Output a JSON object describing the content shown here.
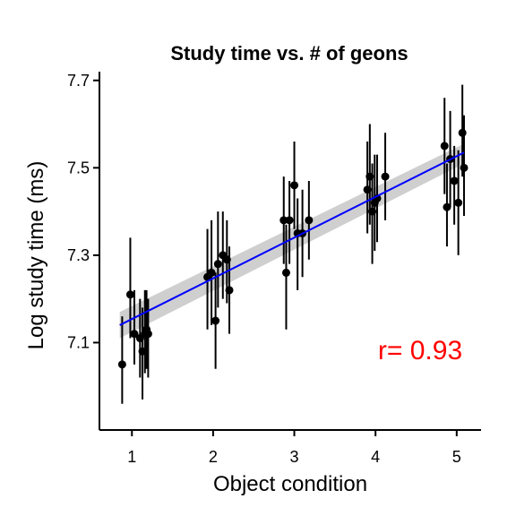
{
  "chart_data": {
    "type": "scatter",
    "title": "Study time vs. # of geons",
    "xlabel": "Object condition",
    "ylabel": "Log study time (ms)",
    "xlim": [
      0.6,
      5.3
    ],
    "ylim": [
      6.9,
      7.72
    ],
    "x_ticks": [
      1,
      2,
      3,
      4,
      5
    ],
    "y_ticks": [
      7.1,
      7.3,
      7.5,
      7.7
    ],
    "y_tick_labels": [
      "7.1",
      "7.3",
      "7.5",
      "7.7"
    ],
    "grid": false,
    "legend": "none",
    "colors": {
      "points": "#000000",
      "fit_line": "#0000ff",
      "ribbon": "#bfbfbf",
      "annotation": "#ff0000"
    },
    "points": [
      {
        "x": 0.88,
        "y": 7.05,
        "ylow": 6.96,
        "yhigh": 7.16
      },
      {
        "x": 0.98,
        "y": 7.21,
        "ylow": 7.11,
        "yhigh": 7.34
      },
      {
        "x": 1.03,
        "y": 7.12,
        "ylow": 7.05,
        "yhigh": 7.22
      },
      {
        "x": 1.1,
        "y": 7.11,
        "ylow": 7.02,
        "yhigh": 7.2
      },
      {
        "x": 1.13,
        "y": 7.08,
        "ylow": 6.97,
        "yhigh": 7.18
      },
      {
        "x": 1.16,
        "y": 7.12,
        "ylow": 7.03,
        "yhigh": 7.22
      },
      {
        "x": 1.18,
        "y": 7.13,
        "ylow": 7.04,
        "yhigh": 7.22
      },
      {
        "x": 1.2,
        "y": 7.12,
        "ylow": 7.02,
        "yhigh": 7.2
      },
      {
        "x": 1.93,
        "y": 7.25,
        "ylow": 7.13,
        "yhigh": 7.36
      },
      {
        "x": 1.98,
        "y": 7.26,
        "ylow": 7.14,
        "yhigh": 7.38
      },
      {
        "x": 2.03,
        "y": 7.15,
        "ylow": 7.04,
        "yhigh": 7.26
      },
      {
        "x": 2.06,
        "y": 7.28,
        "ylow": 7.18,
        "yhigh": 7.4
      },
      {
        "x": 2.12,
        "y": 7.3,
        "ylow": 7.2,
        "yhigh": 7.4
      },
      {
        "x": 2.17,
        "y": 7.29,
        "ylow": 7.19,
        "yhigh": 7.38
      },
      {
        "x": 2.2,
        "y": 7.22,
        "ylow": 7.12,
        "yhigh": 7.32
      },
      {
        "x": 2.87,
        "y": 7.38,
        "ylow": 7.28,
        "yhigh": 7.48
      },
      {
        "x": 2.9,
        "y": 7.26,
        "ylow": 7.13,
        "yhigh": 7.37
      },
      {
        "x": 2.94,
        "y": 7.38,
        "ylow": 7.28,
        "yhigh": 7.47
      },
      {
        "x": 3.0,
        "y": 7.46,
        "ylow": 7.36,
        "yhigh": 7.56
      },
      {
        "x": 3.04,
        "y": 7.35,
        "ylow": 7.22,
        "yhigh": 7.43
      },
      {
        "x": 3.1,
        "y": 7.35,
        "ylow": 7.25,
        "yhigh": 7.45
      },
      {
        "x": 3.18,
        "y": 7.38,
        "ylow": 7.29,
        "yhigh": 7.47
      },
      {
        "x": 3.9,
        "y": 7.45,
        "ylow": 7.35,
        "yhigh": 7.56
      },
      {
        "x": 3.93,
        "y": 7.48,
        "ylow": 7.37,
        "yhigh": 7.6
      },
      {
        "x": 3.96,
        "y": 7.4,
        "ylow": 7.28,
        "yhigh": 7.51
      },
      {
        "x": 3.99,
        "y": 7.42,
        "ylow": 7.31,
        "yhigh": 7.53
      },
      {
        "x": 4.02,
        "y": 7.43,
        "ylow": 7.33,
        "yhigh": 7.53
      },
      {
        "x": 4.12,
        "y": 7.48,
        "ylow": 7.38,
        "yhigh": 7.58
      },
      {
        "x": 4.85,
        "y": 7.55,
        "ylow": 7.44,
        "yhigh": 7.66
      },
      {
        "x": 4.88,
        "y": 7.41,
        "ylow": 7.32,
        "yhigh": 7.51
      },
      {
        "x": 4.92,
        "y": 7.52,
        "ylow": 7.41,
        "yhigh": 7.63
      },
      {
        "x": 4.97,
        "y": 7.47,
        "ylow": 7.37,
        "yhigh": 7.55
      },
      {
        "x": 5.02,
        "y": 7.42,
        "ylow": 7.3,
        "yhigh": 7.54
      },
      {
        "x": 5.07,
        "y": 7.58,
        "ylow": 7.48,
        "yhigh": 7.69
      },
      {
        "x": 5.09,
        "y": 7.5,
        "ylow": 7.39,
        "yhigh": 7.62
      }
    ],
    "fit": {
      "x0": 0.85,
      "y0": 7.14,
      "x1": 5.09,
      "y1": 7.535,
      "ribbon_low": {
        "y0": 7.11,
        "y1": 7.51
      },
      "ribbon_high": {
        "y0": 7.17,
        "y1": 7.555
      }
    },
    "annotation": {
      "text": "r= 0.93",
      "x": 4.55,
      "y": 7.085
    }
  }
}
